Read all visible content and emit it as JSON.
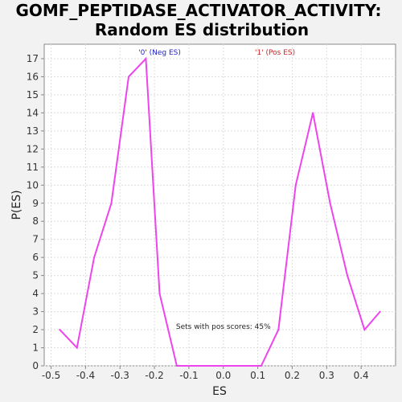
{
  "chart_data": {
    "type": "line",
    "title": [
      "GOMF_PEPTIDASE_ACTIVATOR_ACTIVITY:",
      "Random ES distribution"
    ],
    "xlabel": "ES",
    "ylabel": "P(ES)",
    "xlim": [
      -0.52,
      0.5
    ],
    "ylim": [
      0,
      17.8
    ],
    "xticks": [
      -0.5,
      -0.4,
      -0.3,
      -0.2,
      -0.1,
      0.0,
      0.1,
      0.2,
      0.3,
      0.4
    ],
    "xtick_labels": [
      "-0.5",
      "-0.4",
      "-0.3",
      "-0.2",
      "-0.1",
      "0.0",
      "0.1",
      "0.2",
      "0.3",
      "0.4"
    ],
    "yticks": [
      0,
      1,
      2,
      3,
      4,
      5,
      6,
      7,
      8,
      9,
      10,
      11,
      12,
      13,
      14,
      15,
      16,
      17
    ],
    "grid": true,
    "series": [
      {
        "color": "#ee44ee",
        "x": [
          -0.475,
          -0.425,
          -0.375,
          -0.325,
          -0.275,
          -0.225,
          -0.185,
          -0.135,
          -0.085,
          -0.035,
          0.015,
          0.065,
          0.11,
          0.16,
          0.21,
          0.26,
          0.31,
          0.36,
          0.41,
          0.455
        ],
        "y": [
          2,
          1,
          6,
          9,
          16,
          17,
          4,
          0,
          0,
          0,
          0,
          0,
          0,
          2,
          10,
          14,
          9,
          5,
          2,
          3
        ]
      }
    ],
    "markers": [
      {
        "label": "'0' (Neg ES)",
        "color": "#2222cc",
        "x": -0.185
      },
      {
        "label": "'1' (Pos ES)",
        "color": "#cc2222",
        "x": 0.15
      }
    ],
    "annotation": {
      "text": "Sets with pos scores: 45%",
      "x": 0.0,
      "y": 2.0
    }
  },
  "colors": {
    "background": "#f2f2f2",
    "plot_background": "#ffffff",
    "axis": "#888888"
  }
}
